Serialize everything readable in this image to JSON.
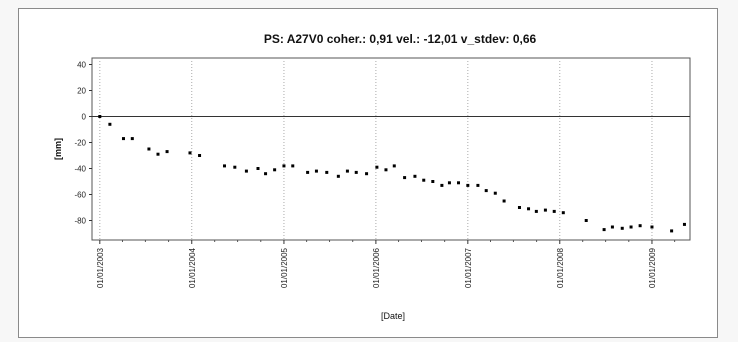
{
  "chart_data": {
    "type": "scatter",
    "title": "PS: A27V0 coher.: 0,91 vel.: -12,01 v_stdev: 0,66",
    "xlabel": "[Date]",
    "ylabel": "[mm]",
    "xlim": [
      "2002-12-01",
      "2009-06-01"
    ],
    "ylim": [
      -95,
      45
    ],
    "yticks": [
      40,
      20,
      0,
      -20,
      -40,
      -60,
      -80
    ],
    "xticks": [
      "01/01/2003",
      "01/01/2004",
      "01/01/2005",
      "01/01/2006",
      "01/01/2007",
      "01/01/2008",
      "01/01/2009"
    ],
    "grid": "vertical dotted",
    "zero_line": true,
    "marker_color": "#000000",
    "series": [
      {
        "points": [
          [
            "2003-01-01",
            0
          ],
          [
            "2003-02-10",
            -6
          ],
          [
            "2003-04-05",
            -17
          ],
          [
            "2003-05-10",
            -17
          ],
          [
            "2003-07-15",
            -25
          ],
          [
            "2003-08-20",
            -29
          ],
          [
            "2003-09-25",
            -27
          ],
          [
            "2003-12-25",
            -28
          ],
          [
            "2004-02-01",
            -30
          ],
          [
            "2004-05-10",
            -38
          ],
          [
            "2004-06-20",
            -39
          ],
          [
            "2004-08-05",
            -42
          ],
          [
            "2004-09-20",
            -40
          ],
          [
            "2004-10-20",
            -44
          ],
          [
            "2004-11-25",
            -41
          ],
          [
            "2005-01-01",
            -38
          ],
          [
            "2005-02-05",
            -38
          ],
          [
            "2005-04-05",
            -43
          ],
          [
            "2005-05-10",
            -42
          ],
          [
            "2005-06-20",
            -43
          ],
          [
            "2005-08-05",
            -46
          ],
          [
            "2005-09-10",
            -42
          ],
          [
            "2005-10-15",
            -43
          ],
          [
            "2005-11-25",
            -44
          ],
          [
            "2006-01-05",
            -39
          ],
          [
            "2006-02-10",
            -41
          ],
          [
            "2006-03-15",
            -38
          ],
          [
            "2006-04-25",
            -47
          ],
          [
            "2006-06-05",
            -46
          ],
          [
            "2006-07-10",
            -49
          ],
          [
            "2006-08-15",
            -50
          ],
          [
            "2006-09-20",
            -53
          ],
          [
            "2006-10-20",
            -51
          ],
          [
            "2006-11-25",
            -51
          ],
          [
            "2007-01-01",
            -53
          ],
          [
            "2007-02-10",
            -53
          ],
          [
            "2007-03-15",
            -57
          ],
          [
            "2007-04-20",
            -59
          ],
          [
            "2007-05-25",
            -65
          ],
          [
            "2007-07-25",
            -70
          ],
          [
            "2007-08-30",
            -71
          ],
          [
            "2007-09-30",
            -73
          ],
          [
            "2007-11-05",
            -72
          ],
          [
            "2007-12-10",
            -73
          ],
          [
            "2008-01-15",
            -74
          ],
          [
            "2008-04-15",
            -80
          ],
          [
            "2008-06-25",
            -87
          ],
          [
            "2008-07-28",
            -85
          ],
          [
            "2008-09-05",
            -86
          ],
          [
            "2008-10-10",
            -85
          ],
          [
            "2008-11-15",
            -84
          ],
          [
            "2009-01-01",
            -85
          ],
          [
            "2009-03-20",
            -88
          ],
          [
            "2009-05-10",
            -83
          ]
        ]
      }
    ]
  }
}
